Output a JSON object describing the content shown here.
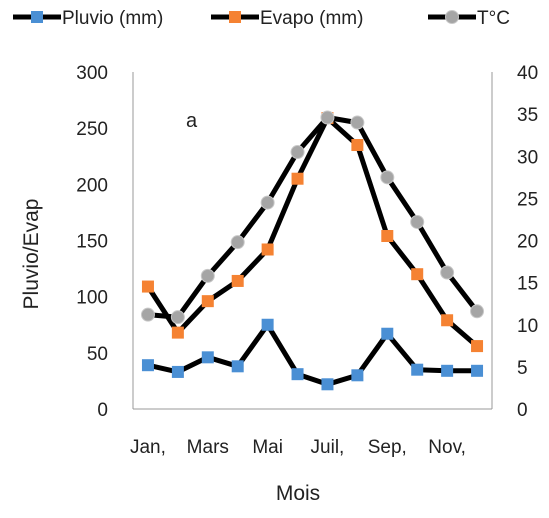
{
  "chart_data": {
    "type": "line",
    "title": "",
    "annotation": "a",
    "xlabel": "Mois",
    "ylabel": "Pluvio/Evap",
    "x_tick_labels": [
      "Jan,",
      "Mars",
      "Mai",
      "Juil,",
      "Sep,",
      "Nov,"
    ],
    "y_ticks": [
      "0",
      "50",
      "100",
      "150",
      "200",
      "250",
      "300"
    ],
    "y2_ticks": [
      "0",
      "5",
      "10",
      "15",
      "20",
      "25",
      "30",
      "35",
      "40"
    ],
    "ylim": [
      0,
      300
    ],
    "y2lim": [
      0,
      40
    ],
    "legend_position": "top",
    "series": [
      {
        "name": "Pluvio (mm)",
        "axis": "left",
        "marker": "square",
        "marker_color": "#4a8fd4",
        "values": [
          39,
          33,
          46,
          38,
          75,
          31,
          22,
          30,
          67,
          35,
          34,
          34
        ]
      },
      {
        "name": "Evapo (mm)",
        "axis": "left",
        "marker": "square",
        "marker_color": "#f58232",
        "values": [
          109,
          68,
          96,
          114,
          142,
          205,
          259,
          235,
          154,
          120,
          79,
          56
        ]
      },
      {
        "name": "T°C",
        "axis": "right",
        "marker": "circle",
        "marker_color": "#a5a5a5",
        "values": [
          11.2,
          10.9,
          15.8,
          19.8,
          24.5,
          30.5,
          34.6,
          34.0,
          27.5,
          22.2,
          16.2,
          11.6
        ]
      }
    ],
    "line_color": "#000000"
  }
}
